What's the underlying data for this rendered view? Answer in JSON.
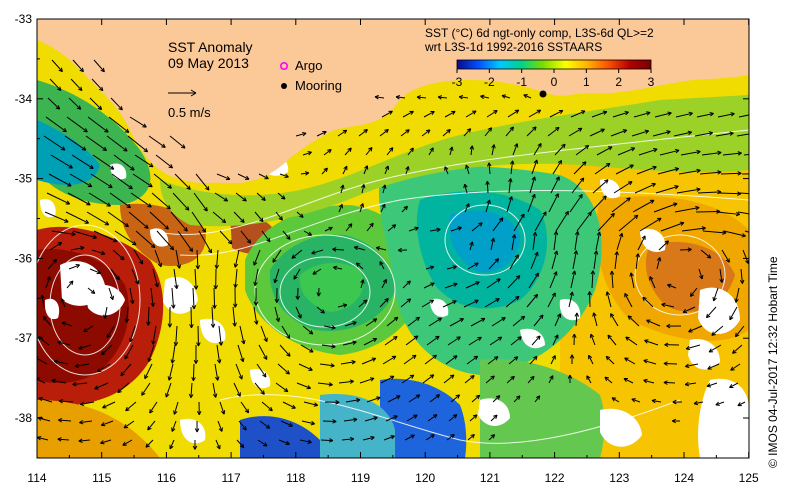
{
  "title": "SST Anomaly",
  "date": "09 May 2013",
  "velocity_scale_label": "0.5 m/s",
  "legend": {
    "argo_label": "Argo",
    "argo_color": "#ff00ff",
    "mooring_label": "Mooring",
    "mooring_color": "#000000"
  },
  "colorbar": {
    "title_line1": "SST (°C) 6d ngt-only comp, L3S-6d QL>=2",
    "title_line2": "wrt L3S-1d 1992-2016 SSTAARS",
    "ticks": [
      "-3",
      "-2",
      "-1",
      "0",
      "1",
      "2",
      "3"
    ],
    "colors": [
      "#0a0a8c",
      "#0050ff",
      "#00c8ff",
      "#00d28c",
      "#78dc00",
      "#ffff00",
      "#ffb400",
      "#ff5000",
      "#b40000",
      "#780000"
    ]
  },
  "axes": {
    "x_ticks": [
      "114",
      "115",
      "116",
      "117",
      "118",
      "119",
      "120",
      "121",
      "122",
      "123",
      "124",
      "125"
    ],
    "y_ticks": [
      "-33",
      "-34",
      "-35",
      "-36",
      "-37",
      "-38"
    ]
  },
  "credit": "©  IMOS 04-Jul-2017 12:32 Hobart Time",
  "colors": {
    "land": "#fbc898",
    "missing": "#ffffff",
    "arrow": "#000000",
    "contour": "#ffffff"
  }
}
